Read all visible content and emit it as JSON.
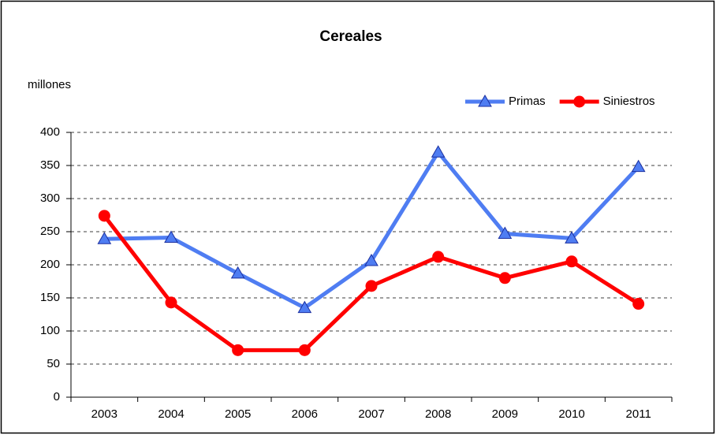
{
  "chart_data": {
    "type": "line",
    "title": "Cereales",
    "y_label": "millones",
    "categories": [
      "2003",
      "2004",
      "2005",
      "2006",
      "2007",
      "2008",
      "2009",
      "2010",
      "2011"
    ],
    "series": [
      {
        "name": "Primas",
        "color": "#4f7df2",
        "marker": "triangle",
        "values": [
          239,
          241,
          187,
          135,
          206,
          370,
          247,
          240,
          348
        ]
      },
      {
        "name": "Siniestros",
        "color": "#ff0000",
        "marker": "circle",
        "values": [
          274,
          143,
          71,
          71,
          168,
          212,
          180,
          205,
          141
        ]
      }
    ],
    "ylim": [
      0,
      400
    ],
    "yticks": [
      0,
      50,
      100,
      150,
      200,
      250,
      300,
      350,
      400
    ],
    "grid": true,
    "legend": "upper right"
  }
}
